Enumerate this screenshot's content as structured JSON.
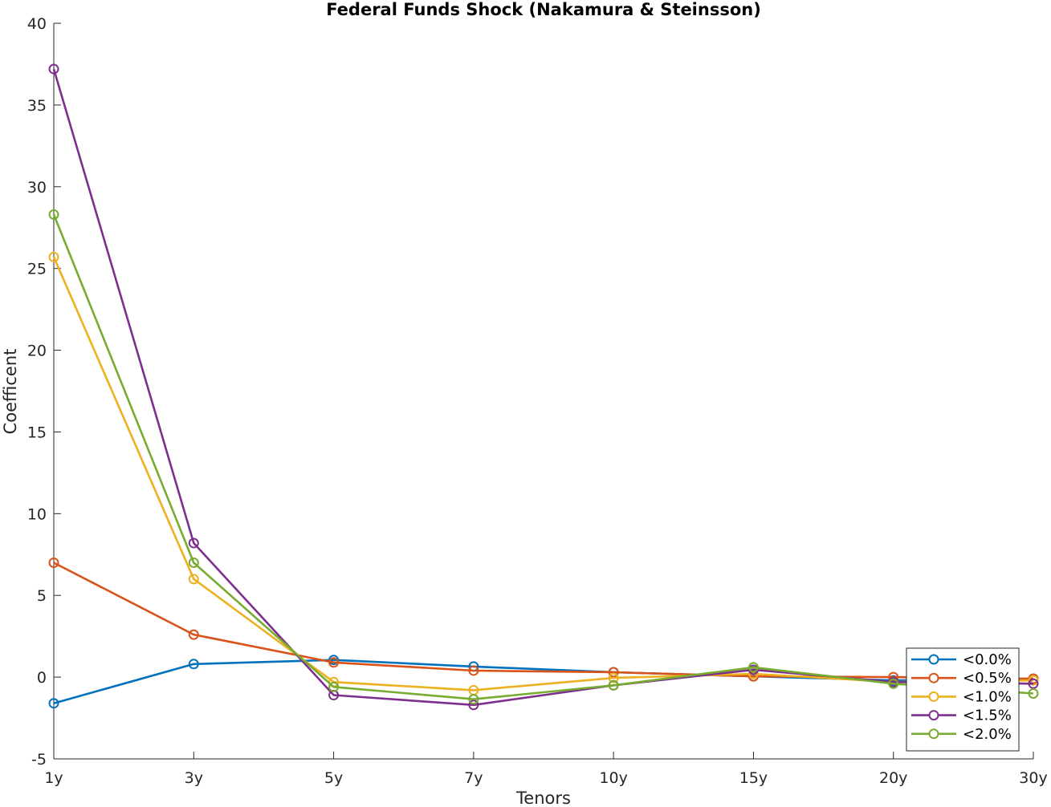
{
  "chart_data": {
    "type": "line",
    "title": "Federal Funds Shock (Nakamura & Steinsson)",
    "xlabel": "Tenors",
    "ylabel": "Coefficent",
    "categories": [
      "1y",
      "3y",
      "5y",
      "7y",
      "10y",
      "15y",
      "20y",
      "30y"
    ],
    "ylim": [
      -5,
      40
    ],
    "yticks": [
      -5,
      0,
      5,
      10,
      15,
      20,
      25,
      30,
      35,
      40
    ],
    "ytick_labels": [
      "-5",
      "0",
      "5",
      "10",
      "15",
      "20",
      "25",
      "30",
      "35",
      "40"
    ],
    "grid": false,
    "legend_position": "bottom-right",
    "marker": "circle",
    "series": [
      {
        "name": "<0.0%",
        "color": "#0072BD",
        "values": [
          -1.6,
          0.8,
          1.05,
          0.65,
          0.3,
          0.05,
          -0.2,
          -0.1
        ]
      },
      {
        "name": "<0.5%",
        "color": "#D95319",
        "values": [
          7.0,
          2.6,
          0.9,
          0.4,
          0.3,
          0.05,
          0.0,
          -0.1
        ]
      },
      {
        "name": "<1.0%",
        "color": "#EDB120",
        "values": [
          25.7,
          6.0,
          -0.3,
          -0.8,
          -0.05,
          0.2,
          -0.3,
          -0.2
        ]
      },
      {
        "name": "<1.5%",
        "color": "#7E2F8E",
        "values": [
          37.2,
          8.2,
          -1.1,
          -1.7,
          -0.5,
          0.45,
          -0.3,
          -0.4
        ]
      },
      {
        "name": "<2.0%",
        "color": "#77AC30",
        "values": [
          28.3,
          7.0,
          -0.6,
          -1.35,
          -0.5,
          0.6,
          -0.4,
          -1.0
        ]
      }
    ]
  }
}
